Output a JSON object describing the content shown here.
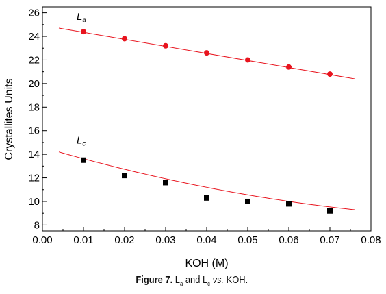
{
  "chart_data": {
    "type": "scatter",
    "xlabel": "KOH (M)",
    "ylabel": "Crystallites Units",
    "xlim": [
      0.0,
      0.08
    ],
    "ylim": [
      7.5,
      26.5
    ],
    "x_ticks": [
      "0.00",
      "0.01",
      "0.02",
      "0.03",
      "0.04",
      "0.05",
      "0.06",
      "0.07",
      "0.08"
    ],
    "y_ticks": [
      "8",
      "10",
      "12",
      "14",
      "16",
      "18",
      "20",
      "22",
      "24",
      "26"
    ],
    "grid": false,
    "series": [
      {
        "name": "La",
        "label_main": "L",
        "label_sub": "a",
        "marker": "circle",
        "color": "#e8141e",
        "x": [
          0.01,
          0.02,
          0.03,
          0.04,
          0.05,
          0.06,
          0.07
        ],
        "y": [
          24.4,
          23.8,
          23.2,
          22.6,
          22.0,
          21.4,
          20.8
        ],
        "fit": {
          "x_start": 0.004,
          "x_end": 0.076,
          "y_start": 24.7,
          "y_end": 20.4
        }
      },
      {
        "name": "Lc",
        "label_main": "L",
        "label_sub": "c",
        "marker": "square",
        "color": "#000000",
        "x": [
          0.01,
          0.02,
          0.03,
          0.04,
          0.05,
          0.06,
          0.07
        ],
        "y": [
          13.5,
          12.2,
          11.6,
          10.3,
          10.0,
          9.8,
          9.2
        ],
        "fit": {
          "x_start": 0.004,
          "x_end": 0.076,
          "y_start": 14.2,
          "y_end": 9.3,
          "type": "quadratic",
          "y_mid": 11.2
        }
      }
    ]
  },
  "caption": {
    "prefix": "Figure 7.",
    "l1": "L",
    "sub1": "a",
    "and": "and",
    "l2": "L",
    "sub2": "c",
    "vs": "vs.",
    "suffix": "KOH."
  },
  "colors": {
    "fit_line": "#e8141e",
    "axis": "#000000"
  }
}
